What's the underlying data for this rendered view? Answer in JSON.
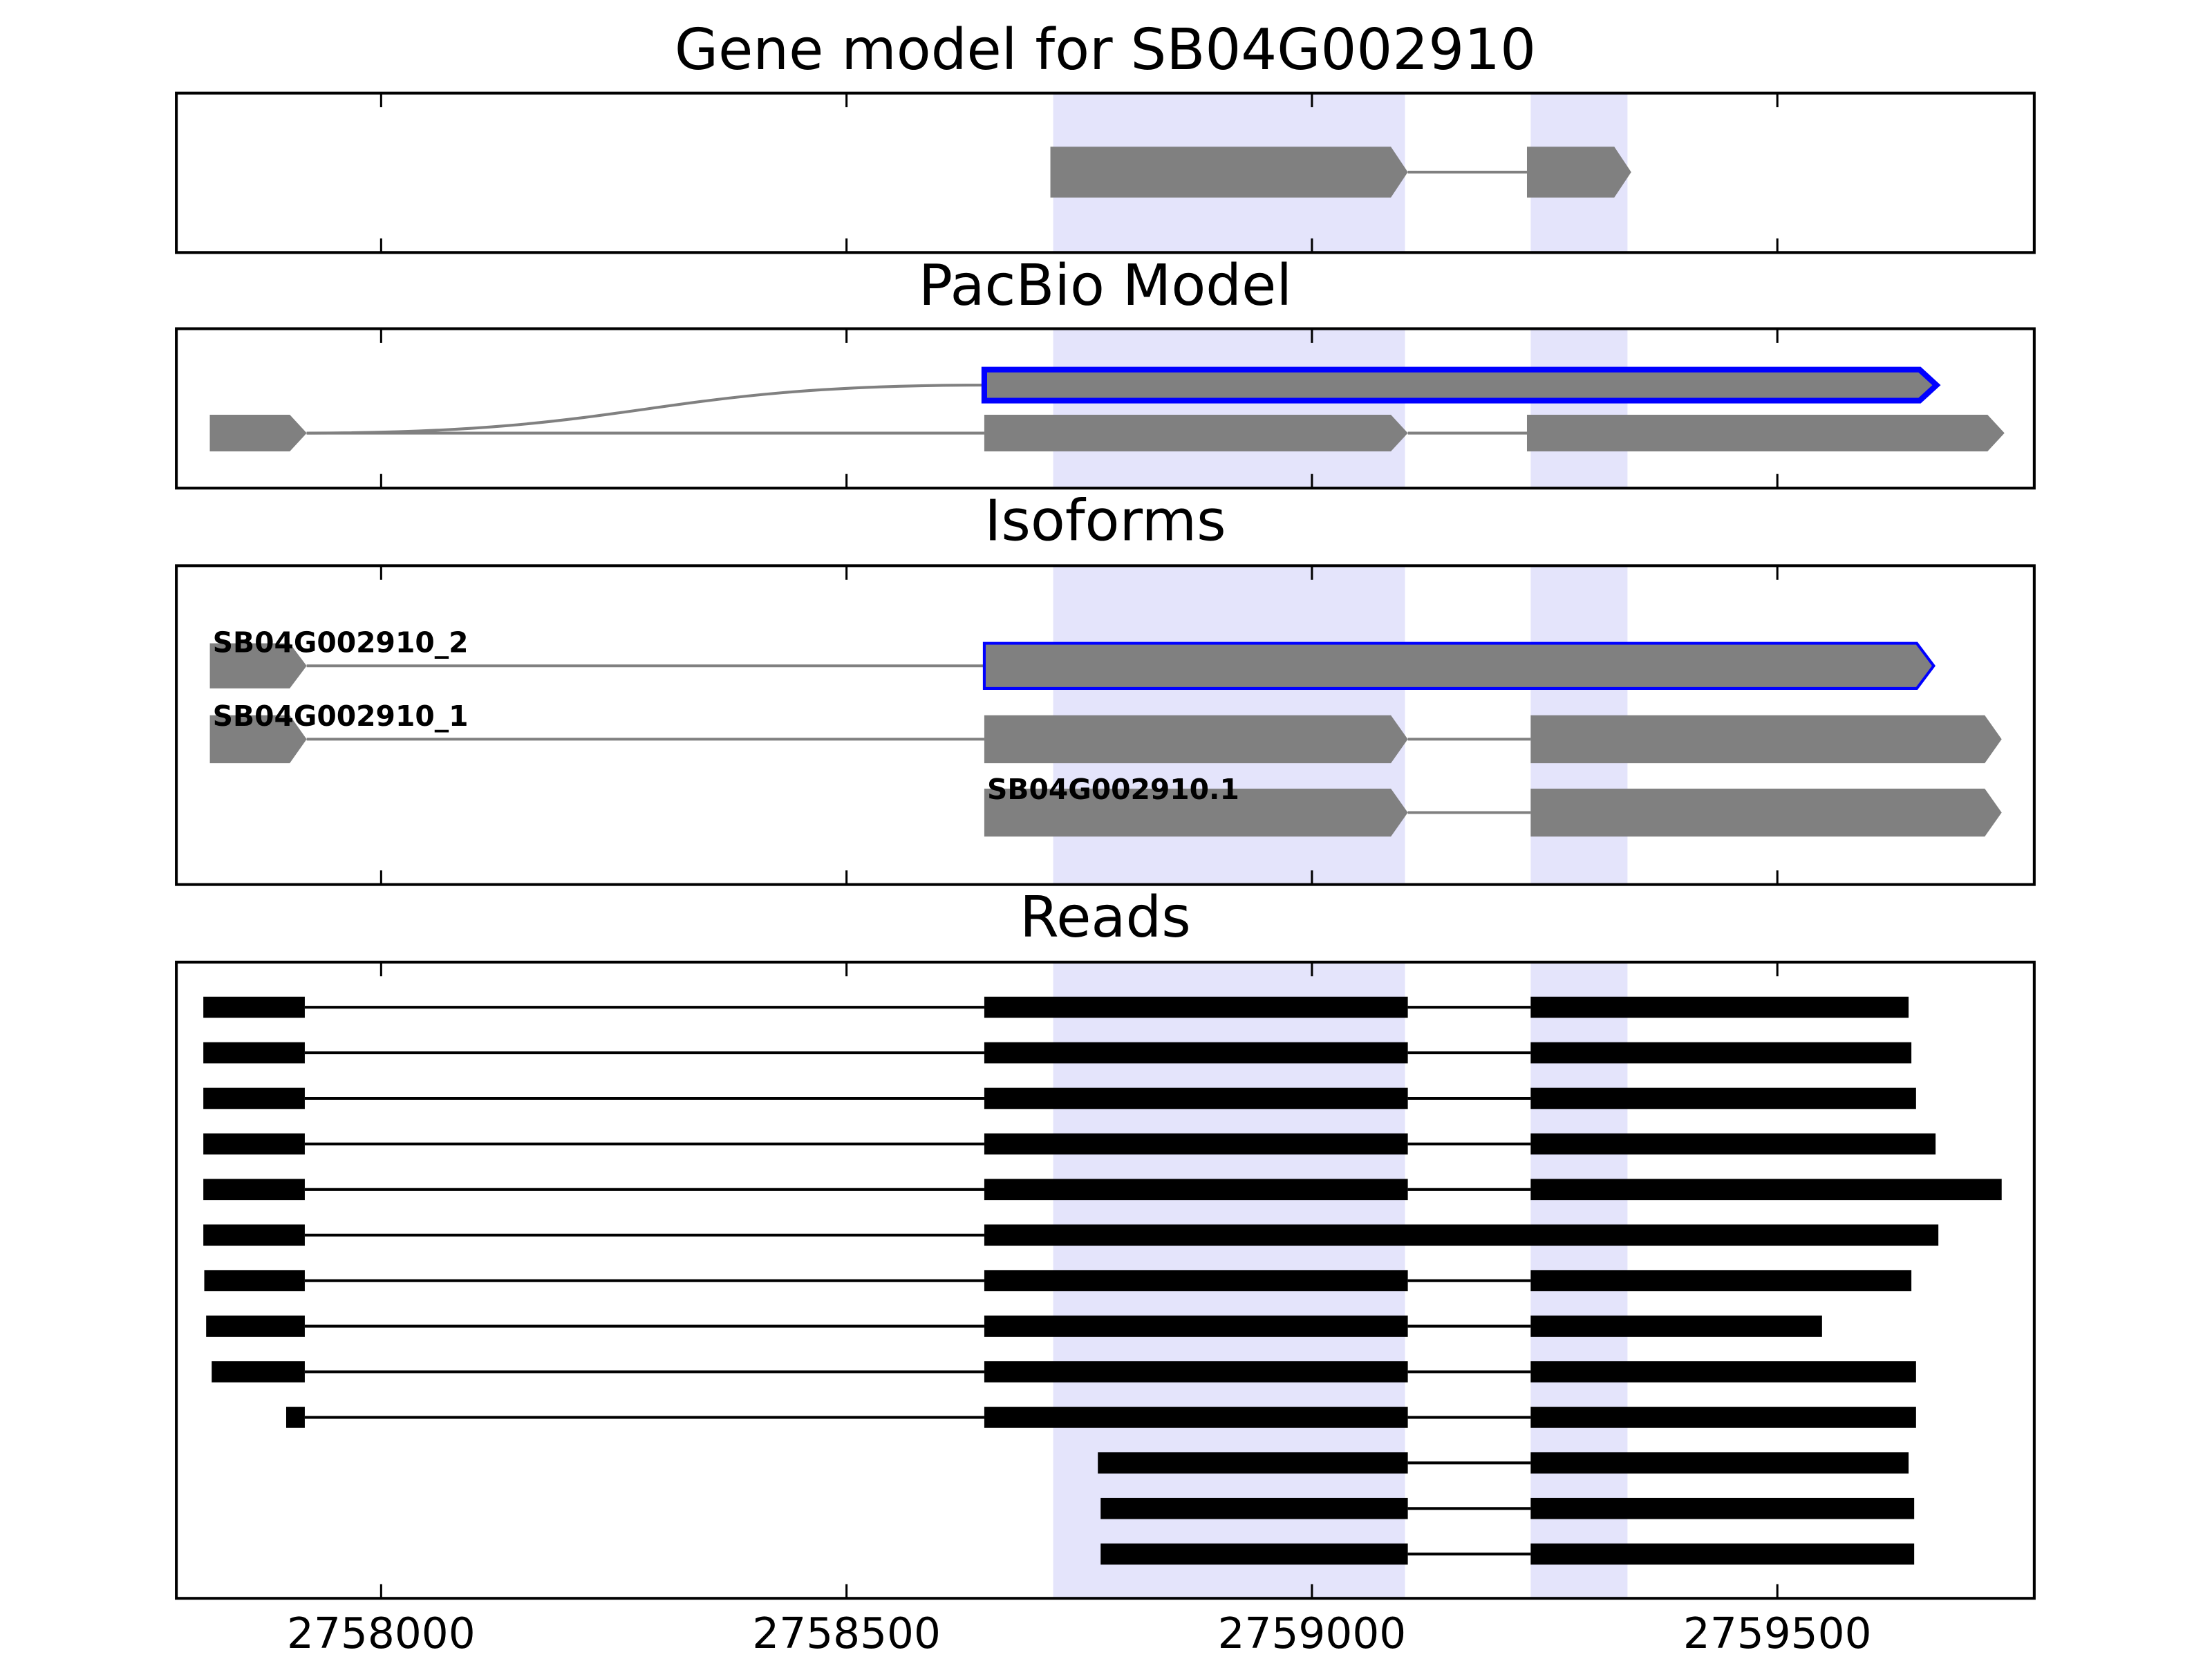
{
  "chart_data": {
    "type": "genes",
    "xlim": [
      2757780,
      2759776
    ],
    "xticks": [
      2758000,
      2758500,
      2759000,
      2759500
    ],
    "highlights": [
      [
        2758722,
        2759100
      ],
      [
        2759235,
        2759339
      ]
    ],
    "highlight_color": "#e4e4fb",
    "exon_color": "#808080",
    "selected_color": "#0000ff",
    "read_color": "#000000",
    "panels": [
      {
        "title": "Gene model for SB04G002910",
        "type": "model",
        "transcripts": [
          {
            "exons": [
              [
                2758719,
                2759103
              ],
              [
                2759231,
                2759343
              ]
            ]
          }
        ]
      },
      {
        "title": "PacBio Model",
        "type": "pacbio",
        "transcripts": [
          {
            "selected": true,
            "exons": [
              [
                2757816,
                2757920
              ],
              [
                2758648,
                2759671
              ]
            ]
          },
          {
            "exons": [
              [
                2757816,
                2757920
              ],
              [
                2758648,
                2759103
              ],
              [
                2759231,
                2759744
              ]
            ]
          }
        ]
      },
      {
        "title": "Isoforms",
        "type": "isoforms",
        "transcripts": [
          {
            "name": "SB04G002910_2",
            "selected": true,
            "exons": [
              [
                2757816,
                2757920
              ],
              [
                2758648,
                2759668
              ]
            ]
          },
          {
            "name": "SB04G002910_1",
            "exons": [
              [
                2757816,
                2757920
              ],
              [
                2758648,
                2759103
              ],
              [
                2759235,
                2759741
              ]
            ]
          },
          {
            "name": "SB04G002910.1",
            "exons": [
              [
                2758648,
                2759103
              ],
              [
                2759235,
                2759741
              ]
            ]
          }
        ]
      },
      {
        "title": "Reads",
        "type": "reads",
        "transcripts": [
          {
            "exons": [
              [
                2757809,
                2757918
              ],
              [
                2758648,
                2759103
              ],
              [
                2759235,
                2759641
              ]
            ]
          },
          {
            "exons": [
              [
                2757809,
                2757918
              ],
              [
                2758648,
                2759103
              ],
              [
                2759235,
                2759644
              ]
            ]
          },
          {
            "exons": [
              [
                2757809,
                2757918
              ],
              [
                2758648,
                2759103
              ],
              [
                2759235,
                2759649
              ]
            ]
          },
          {
            "exons": [
              [
                2757809,
                2757918
              ],
              [
                2758648,
                2759103
              ],
              [
                2759235,
                2759670
              ]
            ]
          },
          {
            "exons": [
              [
                2757809,
                2757918
              ],
              [
                2758648,
                2759103
              ],
              [
                2759235,
                2759741
              ]
            ]
          },
          {
            "exons": [
              [
                2757809,
                2757918
              ],
              [
                2758648,
                2759673
              ]
            ]
          },
          {
            "exons": [
              [
                2757810,
                2757918
              ],
              [
                2758648,
                2759103
              ],
              [
                2759235,
                2759644
              ]
            ]
          },
          {
            "exons": [
              [
                2757812,
                2757918
              ],
              [
                2758648,
                2759103
              ],
              [
                2759235,
                2759548
              ]
            ]
          },
          {
            "exons": [
              [
                2757818,
                2757918
              ],
              [
                2758648,
                2759103
              ],
              [
                2759235,
                2759649
              ]
            ]
          },
          {
            "exons": [
              [
                2757898,
                2757918
              ],
              [
                2758648,
                2759103
              ],
              [
                2759235,
                2759649
              ]
            ]
          },
          {
            "exons": [
              [
                2758770,
                2759103
              ],
              [
                2759235,
                2759641
              ]
            ]
          },
          {
            "exons": [
              [
                2758773,
                2759103
              ],
              [
                2759235,
                2759647
              ]
            ]
          },
          {
            "exons": [
              [
                2758773,
                2759103
              ],
              [
                2759235,
                2759647
              ]
            ]
          }
        ]
      }
    ]
  }
}
